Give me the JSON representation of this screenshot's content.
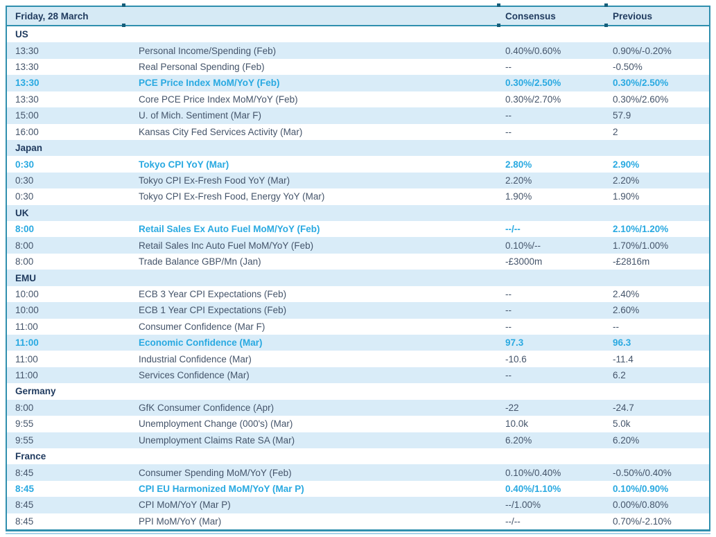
{
  "table": {
    "date_label": "Friday, 28 March",
    "value_columns": [
      "Consensus",
      "Previous"
    ],
    "colors": {
      "border": "#2F8FAE",
      "stripe": "#D9ECF8",
      "header_bg": "#D6EAF5",
      "heading_text": "#1F3A5E",
      "body_text": "#44546A",
      "highlight_text": "#29A9E1"
    },
    "sections": [
      {
        "region": "US",
        "rows": [
          {
            "time": "13:30",
            "event": "Personal Income/Spending (Feb)",
            "consensus": "0.40%/0.60%",
            "previous": "0.90%/-0.20%",
            "highlight": false
          },
          {
            "time": "13:30",
            "event": "Real Personal Spending (Feb)",
            "consensus": "--",
            "previous": "-0.50%",
            "highlight": false
          },
          {
            "time": "13:30",
            "event": "PCE Price Index MoM/YoY (Feb)",
            "consensus": "0.30%/2.50%",
            "previous": "0.30%/2.50%",
            "highlight": true
          },
          {
            "time": "13:30",
            "event": "Core PCE Price Index MoM/YoY (Feb)",
            "consensus": "0.30%/2.70%",
            "previous": "0.30%/2.60%",
            "highlight": false
          },
          {
            "time": "15:00",
            "event": "U. of Mich. Sentiment (Mar F)",
            "consensus": "--",
            "previous": "57.9",
            "highlight": false
          },
          {
            "time": "16:00",
            "event": "Kansas City Fed Services Activity (Mar)",
            "consensus": "--",
            "previous": "2",
            "highlight": false
          }
        ]
      },
      {
        "region": "Japan",
        "rows": [
          {
            "time": "0:30",
            "event": "Tokyo CPI YoY (Mar)",
            "consensus": "2.80%",
            "previous": "2.90%",
            "highlight": true
          },
          {
            "time": "0:30",
            "event": "Tokyo CPI Ex-Fresh Food YoY (Mar)",
            "consensus": "2.20%",
            "previous": "2.20%",
            "highlight": false
          },
          {
            "time": "0:30",
            "event": "Tokyo CPI Ex-Fresh Food, Energy YoY (Mar)",
            "consensus": "1.90%",
            "previous": "1.90%",
            "highlight": false
          }
        ]
      },
      {
        "region": "UK",
        "rows": [
          {
            "time": "8:00",
            "event": "Retail Sales Ex Auto Fuel MoM/YoY (Feb)",
            "consensus": "--/--",
            "previous": "2.10%/1.20%",
            "highlight": true
          },
          {
            "time": "8:00",
            "event": "Retail Sales Inc Auto Fuel MoM/YoY (Feb)",
            "consensus": "0.10%/--",
            "previous": "1.70%/1.00%",
            "highlight": false
          },
          {
            "time": "8:00",
            "event": "Trade Balance GBP/Mn (Jan)",
            "consensus": "-£3000m",
            "previous": "-£2816m",
            "highlight": false
          }
        ]
      },
      {
        "region": "EMU",
        "rows": [
          {
            "time": "10:00",
            "event": "ECB 3 Year CPI Expectations (Feb)",
            "consensus": "--",
            "previous": "2.40%",
            "highlight": false
          },
          {
            "time": "10:00",
            "event": "ECB 1 Year CPI Expectations (Feb)",
            "consensus": "--",
            "previous": "2.60%",
            "highlight": false
          },
          {
            "time": "11:00",
            "event": "Consumer Confidence (Mar F)",
            "consensus": "--",
            "previous": "--",
            "highlight": false
          },
          {
            "time": "11:00",
            "event": "Economic Confidence (Mar)",
            "consensus": "97.3",
            "previous": "96.3",
            "highlight": true
          },
          {
            "time": "11:00",
            "event": "Industrial Confidence (Mar)",
            "consensus": "-10.6",
            "previous": "-11.4",
            "highlight": false
          },
          {
            "time": "11:00",
            "event": "Services Confidence (Mar)",
            "consensus": "--",
            "previous": "6.2",
            "highlight": false
          }
        ]
      },
      {
        "region": "Germany",
        "rows": [
          {
            "time": "8:00",
            "event": "GfK Consumer Confidence (Apr)",
            "consensus": "-22",
            "previous": "-24.7",
            "highlight": false
          },
          {
            "time": "9:55",
            "event": "Unemployment Change (000's) (Mar)",
            "consensus": "10.0k",
            "previous": "5.0k",
            "highlight": false
          },
          {
            "time": "9:55",
            "event": "Unemployment Claims Rate SA (Mar)",
            "consensus": "6.20%",
            "previous": "6.20%",
            "highlight": false
          }
        ]
      },
      {
        "region": "France",
        "rows": [
          {
            "time": "8:45",
            "event": "Consumer Spending MoM/YoY (Feb)",
            "consensus": "0.10%/0.40%",
            "previous": "-0.50%/0.40%",
            "highlight": false
          },
          {
            "time": "8:45",
            "event": "CPI EU Harmonized MoM/YoY (Mar P)",
            "consensus": "0.40%/1.10%",
            "previous": "0.10%/0.90%",
            "highlight": true
          },
          {
            "time": "8:45",
            "event": "CPI MoM/YoY (Mar P)",
            "consensus": "--/1.00%",
            "previous": "0.00%/0.80%",
            "highlight": false
          },
          {
            "time": "8:45",
            "event": "PPI MoM/YoY (Mar)",
            "consensus": "--/--",
            "previous": "0.70%/-2.10%",
            "highlight": false
          }
        ]
      }
    ]
  }
}
